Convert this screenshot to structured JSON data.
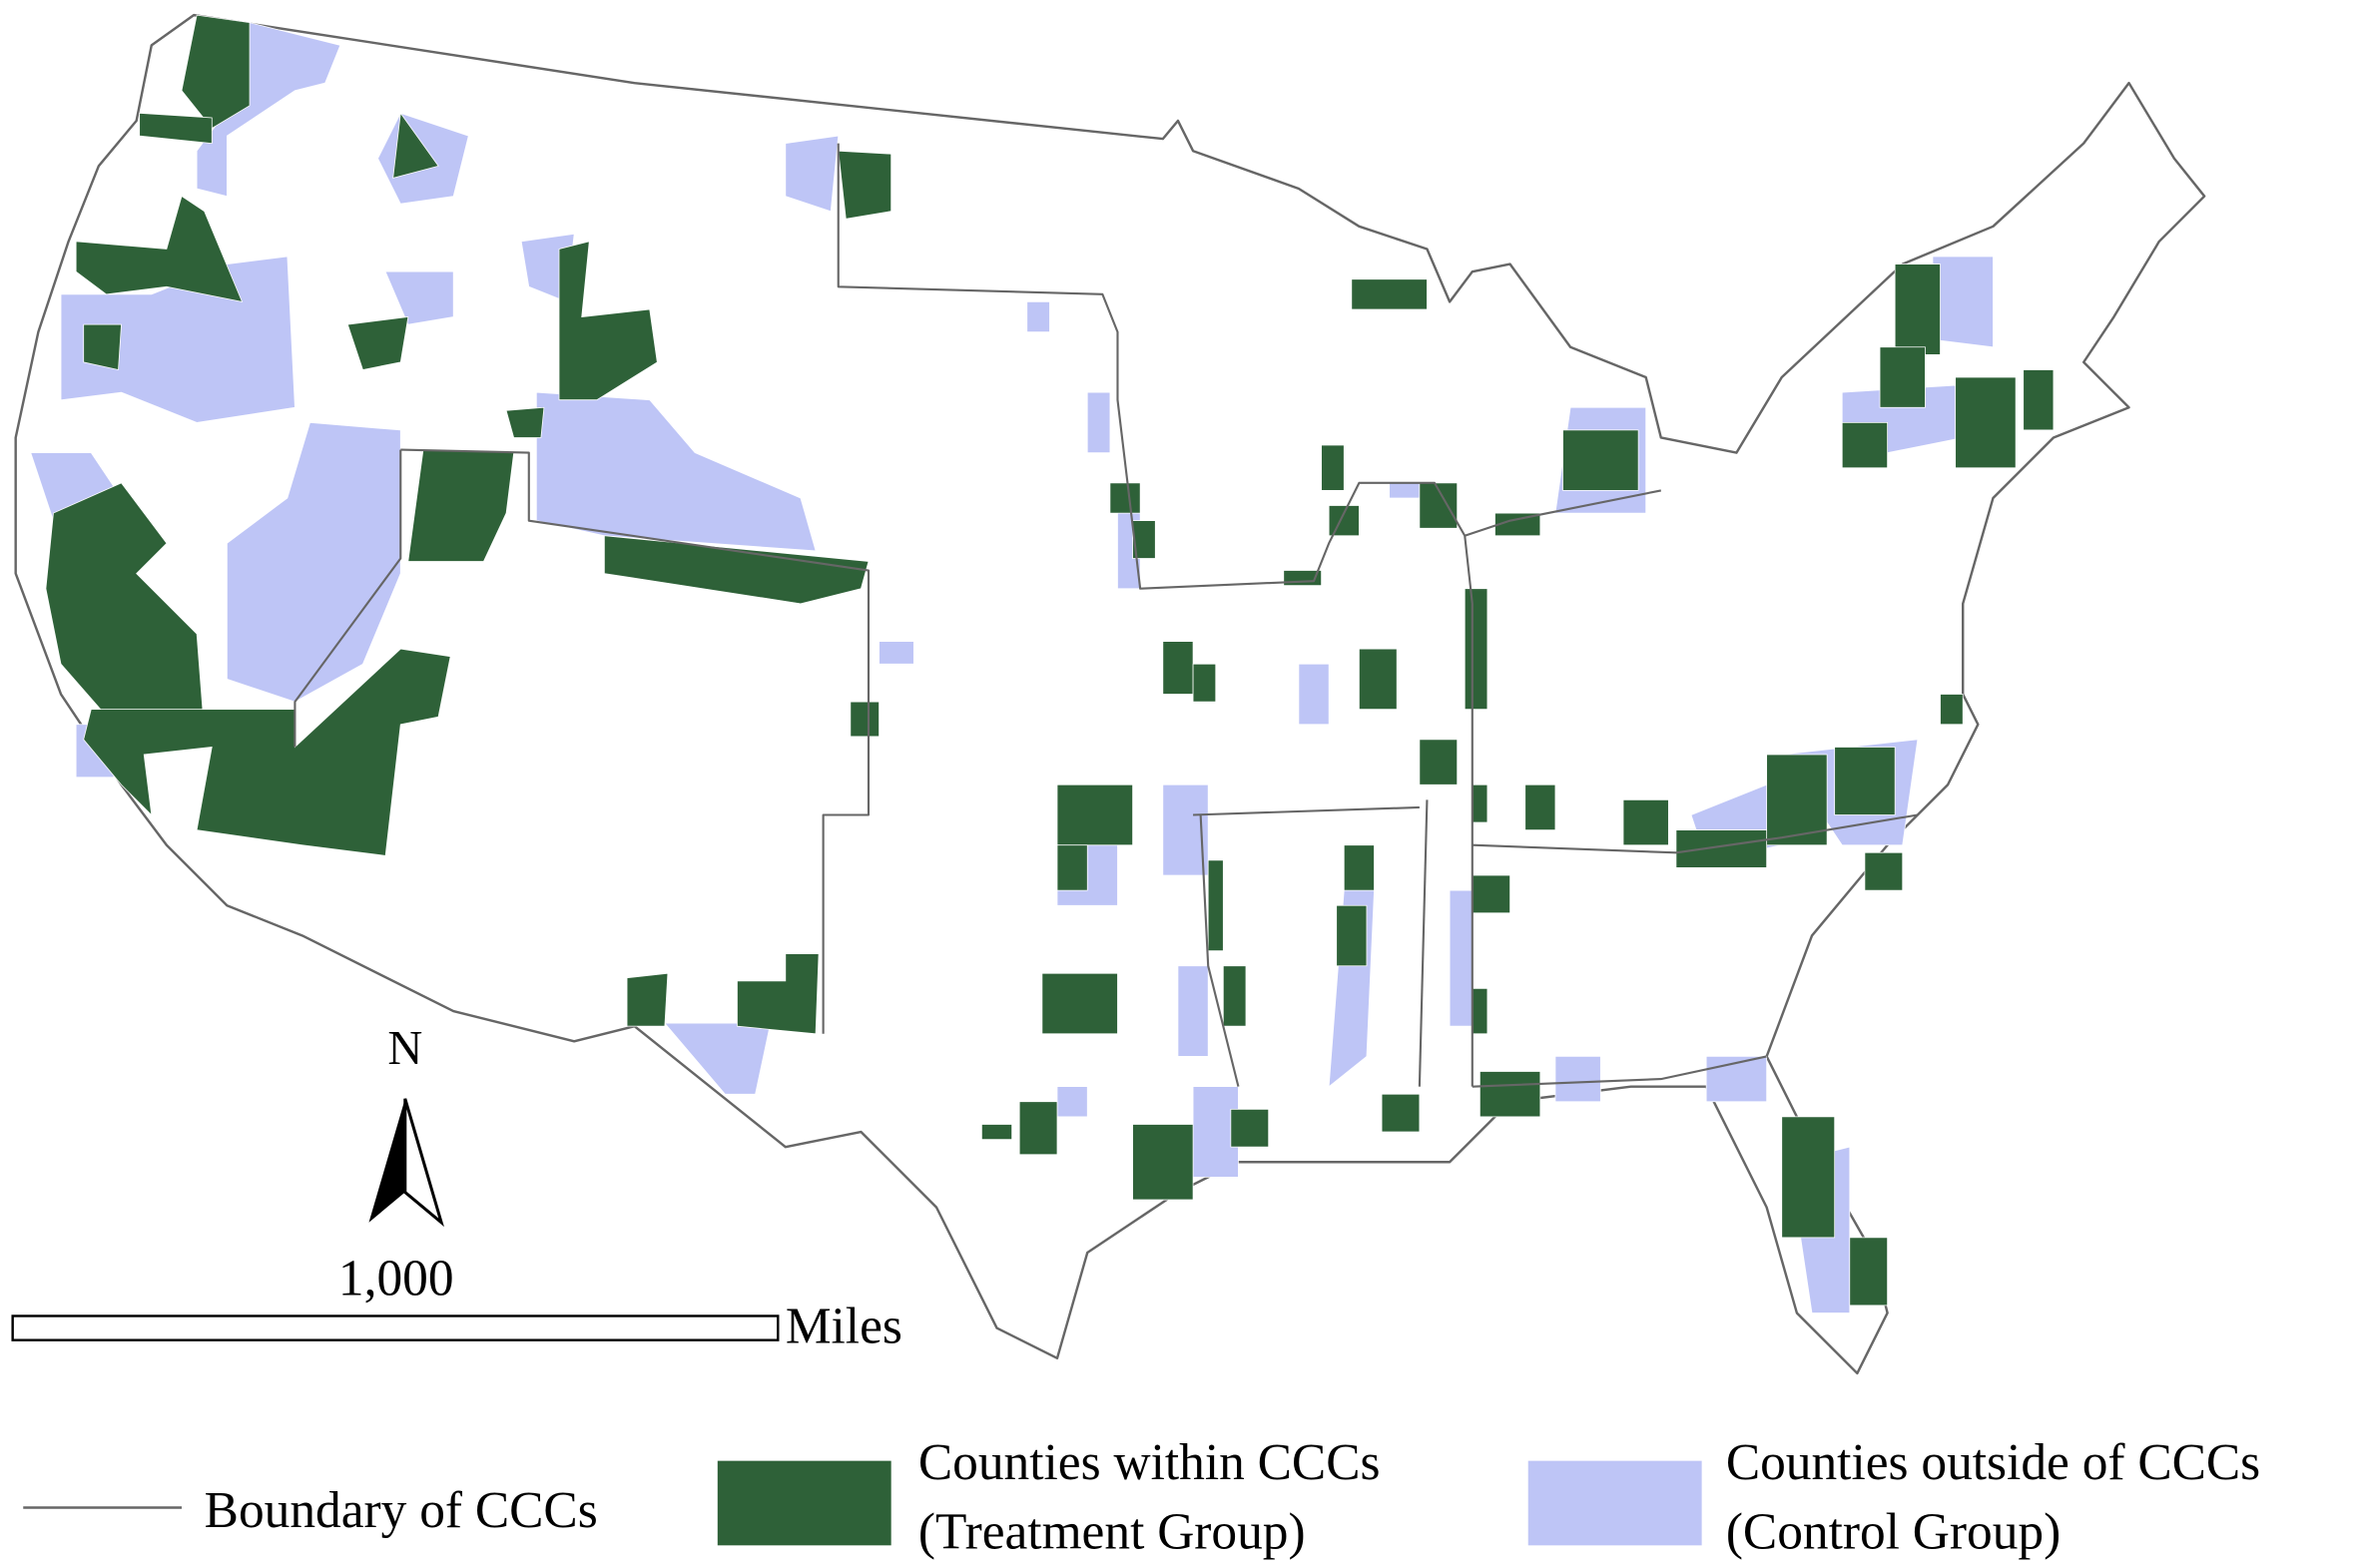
{
  "map": {
    "north_label": "N",
    "scale_bar": {
      "label": "1,000",
      "unit": "Miles"
    }
  },
  "legend": [
    {
      "label": "Boundary of CCCs"
    },
    {
      "lines": [
        "Counties within CCCs",
        "(Treatment Group)"
      ]
    },
    {
      "lines": [
        "Counties outside of CCCs",
        "(Control Group)"
      ]
    }
  ]
}
